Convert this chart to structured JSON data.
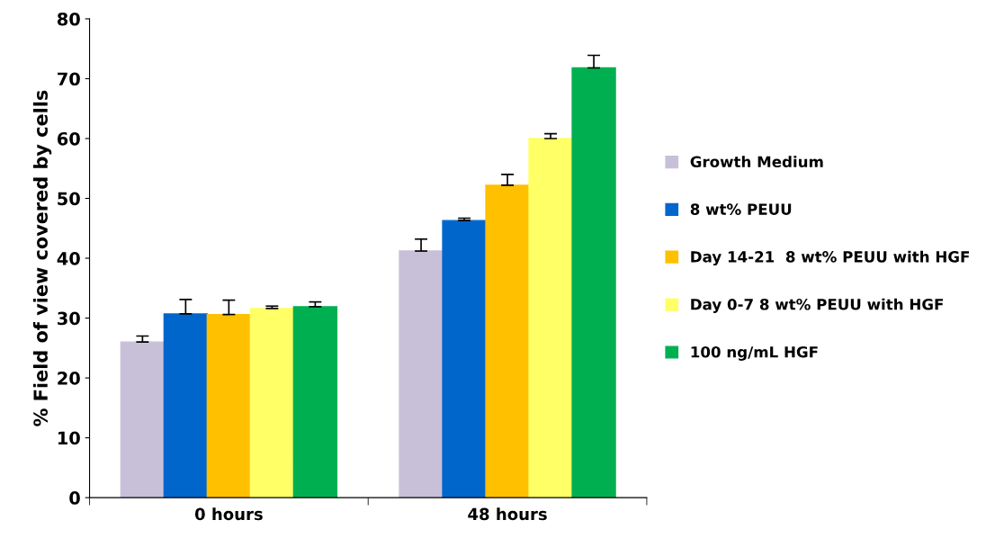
{
  "chart_data": {
    "type": "bar",
    "ylabel": "% Field of view covered by cells",
    "categories": [
      "0 hours",
      "48 hours"
    ],
    "series": [
      {
        "name": "Growth Medium",
        "color": "#c8c0d8",
        "values": [
          26.0,
          41.2
        ],
        "errors": [
          1.0,
          2.0
        ]
      },
      {
        "name": "8 wt% PEUU",
        "color": "#0066cc",
        "values": [
          30.7,
          46.3
        ],
        "errors": [
          2.4,
          0.4
        ]
      },
      {
        "name": "Day 14-21  8 wt% PEUU with HGF",
        "color": "#ffc000",
        "values": [
          30.6,
          52.2
        ],
        "errors": [
          2.4,
          1.8
        ]
      },
      {
        "name": "Day 0-7 8 wt% PEUU with HGF",
        "color": "#ffff66",
        "values": [
          31.6,
          60.0
        ],
        "errors": [
          0.4,
          0.8
        ]
      },
      {
        "name": "100 ng/mL HGF",
        "color": "#00b050",
        "values": [
          31.9,
          71.8
        ],
        "errors": [
          0.8,
          2.1
        ]
      }
    ],
    "ylim": [
      0,
      80
    ],
    "yticks": [
      0,
      10,
      20,
      30,
      40,
      50,
      60,
      70,
      80
    ],
    "grid": false,
    "legend": "right"
  }
}
